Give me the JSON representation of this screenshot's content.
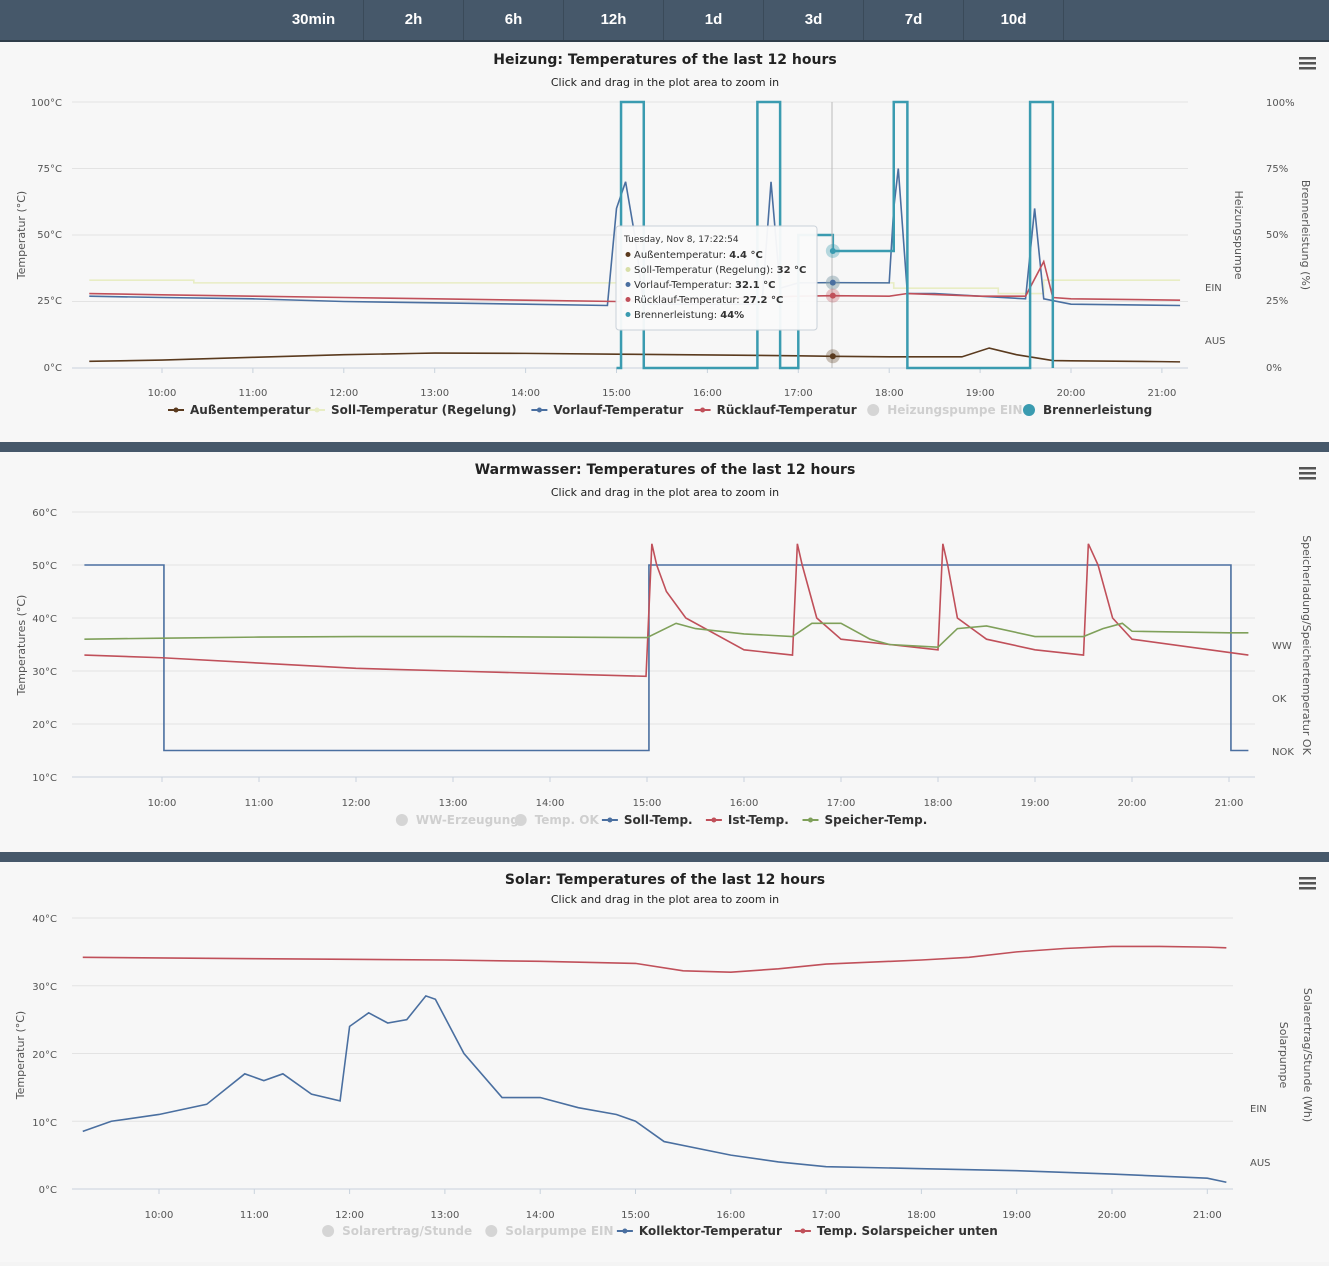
{
  "range_tabs": [
    "30min",
    "2h",
    "6h",
    "12h",
    "1d",
    "3d",
    "7d",
    "10d"
  ],
  "heizung": {
    "title": "Heizung: Temperatures of the last 12 hours",
    "subtitle": "Click and drag in the plot area to zoom in",
    "y_label": "Temperatur (°C)",
    "y2_label": "Heizungspumpe",
    "y3_label": "Brennerleistung (%)",
    "y_ticks": [
      "100°C",
      "75°C",
      "50°C",
      "25°C",
      "0°C"
    ],
    "y3_ticks": [
      "100%",
      "75%",
      "50%",
      "25%",
      "0%"
    ],
    "pump_states": [
      "EIN",
      "AUS"
    ],
    "x_ticks": [
      "10:00",
      "11:00",
      "12:00",
      "13:00",
      "14:00",
      "15:00",
      "16:00",
      "17:00",
      "18:00",
      "19:00",
      "20:00",
      "21:00"
    ],
    "legend": [
      {
        "name": "Außentemperatur",
        "color": "#5a3a1e",
        "enabled": true
      },
      {
        "name": "Soll-Temperatur (Regelung)",
        "color": "#e8edc4",
        "enabled": true
      },
      {
        "name": "Vorlauf-Temperatur",
        "color": "#4a6fa0",
        "enabled": true
      },
      {
        "name": "Rücklauf-Temperatur",
        "color": "#c0505a",
        "enabled": true
      },
      {
        "name": "Heizungspumpe EIN",
        "color": "#cccccc",
        "enabled": false
      },
      {
        "name": "Brennerleistung",
        "color": "#3a9bb0",
        "enabled": true
      }
    ],
    "tooltip": {
      "header": "Tuesday, Nov 8, 17:22:54",
      "rows": [
        {
          "label": "Außentemperatur: ",
          "value": "4.4 °C",
          "color": "#5a3a1e"
        },
        {
          "label": "Soll-Temperatur (Regelung): ",
          "value": "32 °C",
          "color": "#e8edc4"
        },
        {
          "label": "Vorlauf-Temperatur: ",
          "value": "32.1 °C",
          "color": "#4a6fa0"
        },
        {
          "label": "Rücklauf-Temperatur: ",
          "value": "27.2 °C",
          "color": "#c0505a"
        },
        {
          "label": "Brennerleistung: ",
          "value": "44%",
          "color": "#3a9bb0"
        }
      ]
    }
  },
  "warmwasser": {
    "title": "Warmwasser: Temperatures of the last 12 hours",
    "subtitle": "Click and drag in the plot area to zoom in",
    "y_label": "Temperatures (°C)",
    "y2_label": "Speicherladung/Speichertemperatur OK",
    "y_ticks": [
      "60°C",
      "50°C",
      "40°C",
      "30°C",
      "20°C",
      "10°C"
    ],
    "y2_ticks": [
      "WW",
      "OK",
      "NOK"
    ],
    "x_ticks": [
      "10:00",
      "11:00",
      "12:00",
      "13:00",
      "14:00",
      "15:00",
      "16:00",
      "17:00",
      "18:00",
      "19:00",
      "20:00",
      "21:00"
    ],
    "legend": [
      {
        "name": "WW-Erzeugung",
        "color": "#cccccc",
        "enabled": false
      },
      {
        "name": "Temp. OK",
        "color": "#cccccc",
        "enabled": false
      },
      {
        "name": "Soll-Temp.",
        "color": "#4a6fa0",
        "enabled": true
      },
      {
        "name": "Ist-Temp.",
        "color": "#c0505a",
        "enabled": true
      },
      {
        "name": "Speicher-Temp.",
        "color": "#7fa05a",
        "enabled": true
      }
    ]
  },
  "solar": {
    "title": "Solar: Temperatures of the last 12 hours",
    "subtitle": "Click and drag in the plot area to zoom in",
    "y_label": "Temperatur (°C)",
    "y2_label": "Solarpumpe",
    "y3_label": "Solarertrag/Stunde (Wh)",
    "y_ticks": [
      "40°C",
      "30°C",
      "20°C",
      "10°C",
      "0°C"
    ],
    "pump_states": [
      "EIN",
      "AUS"
    ],
    "x_ticks": [
      "10:00",
      "11:00",
      "12:00",
      "13:00",
      "14:00",
      "15:00",
      "16:00",
      "17:00",
      "18:00",
      "19:00",
      "20:00",
      "21:00"
    ],
    "legend": [
      {
        "name": "Solarertrag/Stunde",
        "color": "#cccccc",
        "enabled": false
      },
      {
        "name": "Solarpumpe EIN",
        "color": "#cccccc",
        "enabled": false
      },
      {
        "name": "Kollektor-Temperatur",
        "color": "#4a6fa0",
        "enabled": true
      },
      {
        "name": "Temp. Solarspeicher unten",
        "color": "#c0505a",
        "enabled": true
      }
    ]
  },
  "chart_data": [
    {
      "type": "line",
      "title": "Heizung: Temperatures of the last 12 hours",
      "x_unit": "hour",
      "ylim": [
        0,
        100
      ],
      "series": [
        {
          "name": "Außentemperatur",
          "x": [
            9.2,
            10,
            11,
            12,
            12.8,
            13,
            14,
            15,
            16,
            17,
            17.38,
            18,
            18.8,
            19.1,
            19.4,
            19.8,
            20,
            21,
            21.2
          ],
          "values": [
            2.5,
            3,
            4,
            5,
            5.5,
            5.6,
            5.5,
            5.2,
            4.9,
            4.6,
            4.4,
            4.2,
            4.2,
            7.5,
            5,
            2.8,
            2.7,
            2.4,
            2.3
          ]
        },
        {
          "name": "Soll-Temperatur (Regelung)",
          "x": [
            9.2,
            10.3,
            10.35,
            11,
            12,
            13,
            14,
            15,
            16,
            17,
            18,
            18.05,
            18.2,
            19,
            19.2,
            19.4,
            19.6,
            19.7,
            21.2
          ],
          "values": [
            33,
            33,
            32,
            32,
            32,
            32,
            32,
            32,
            32,
            32,
            32,
            30,
            30,
            30,
            28,
            28,
            28,
            33,
            33
          ]
        },
        {
          "name": "Vorlauf-Temperatur",
          "x": [
            9.2,
            10,
            11,
            12,
            13,
            14,
            14.9,
            15,
            15.1,
            15.2,
            15.3,
            16,
            16.6,
            16.7,
            16.8,
            17,
            17.38,
            18,
            18.05,
            18.1,
            18.2,
            18.5,
            19,
            19.5,
            19.6,
            19.7,
            20,
            21.2
          ],
          "values": [
            27,
            26.5,
            26,
            25,
            24.5,
            24,
            23.5,
            60,
            70,
            50,
            24,
            24,
            24,
            70,
            30,
            32,
            32.1,
            32,
            60,
            75,
            28,
            28,
            27,
            26,
            60,
            26,
            24,
            23.5
          ]
        },
        {
          "name": "Rücklauf-Temperatur",
          "x": [
            9.2,
            10,
            11,
            12,
            13,
            14,
            15,
            16,
            17,
            17.38,
            18,
            18.2,
            19,
            19.5,
            19.7,
            19.8,
            20,
            21.2
          ],
          "values": [
            28,
            27.5,
            27,
            26.5,
            26,
            25.5,
            25,
            26,
            27,
            27.2,
            27,
            28,
            27,
            27,
            40,
            26.5,
            26,
            25.5
          ]
        },
        {
          "name": "Brennerleistung",
          "x": [
            15,
            15.05,
            15.3,
            16.5,
            16.55,
            16.8,
            17.0,
            17.38,
            18,
            18.05,
            18.2,
            19.5,
            19.55,
            19.8
          ],
          "values": [
            0,
            100,
            0,
            0,
            100,
            0,
            50,
            44,
            44,
            100,
            0,
            0,
            100,
            0
          ]
        }
      ]
    },
    {
      "type": "line",
      "title": "Warmwasser: Temperatures of the last 12 hours",
      "x_unit": "hour",
      "ylim": [
        10,
        60
      ],
      "series": [
        {
          "name": "Soll-Temp.",
          "x": [
            9.2,
            10,
            10.02,
            15.0,
            15.02,
            21.0,
            21.02,
            21.2
          ],
          "values": [
            50,
            50,
            15,
            15,
            50,
            50,
            15,
            15
          ]
        },
        {
          "name": "Ist-Temp.",
          "x": [
            9.2,
            10,
            11,
            12,
            13,
            14,
            14.99,
            15.05,
            15.1,
            15.2,
            15.4,
            16,
            16.5,
            16.55,
            16.6,
            16.75,
            17,
            17.5,
            18.0,
            18.05,
            18.1,
            18.2,
            18.5,
            19,
            19.5,
            19.55,
            19.65,
            19.8,
            20,
            21,
            21.2
          ],
          "values": [
            33,
            32.5,
            31.5,
            30.5,
            30,
            29.5,
            29,
            54,
            50,
            45,
            40,
            34,
            33,
            54,
            50,
            40,
            36,
            35,
            34,
            54,
            50,
            40,
            36,
            34,
            33,
            54,
            50,
            40,
            36,
            33.5,
            33
          ]
        },
        {
          "name": "Speicher-Temp.",
          "x": [
            9.2,
            10,
            11,
            12,
            13,
            14,
            15,
            15.3,
            15.5,
            16,
            16.5,
            16.7,
            17,
            17.3,
            17.5,
            18,
            18.2,
            18.5,
            19,
            19.5,
            19.7,
            19.9,
            20,
            21,
            21.2
          ],
          "values": [
            36,
            36.2,
            36.4,
            36.5,
            36.5,
            36.4,
            36.3,
            39,
            38,
            37,
            36.5,
            39,
            39,
            36,
            35,
            34.5,
            38,
            38.5,
            36.5,
            36.5,
            38,
            39,
            37.5,
            37.2,
            37.2
          ]
        }
      ]
    },
    {
      "type": "line",
      "title": "Solar: Temperatures of the last 12 hours",
      "x_unit": "hour",
      "ylim": [
        0,
        40
      ],
      "series": [
        {
          "name": "Kollektor-Temperatur",
          "x": [
            9.2,
            9.5,
            10,
            10.5,
            10.9,
            11.1,
            11.3,
            11.6,
            11.9,
            12.0,
            12.2,
            12.4,
            12.6,
            12.8,
            12.9,
            13.2,
            13.6,
            14,
            14.4,
            14.8,
            15.0,
            15.3,
            16,
            16.5,
            17,
            18,
            19,
            20,
            21,
            21.2
          ],
          "values": [
            8.5,
            10,
            11,
            12.5,
            17,
            16,
            17,
            14,
            13,
            24,
            26,
            24.5,
            25,
            28.5,
            28,
            20,
            13.5,
            13.5,
            12,
            11,
            10,
            7,
            5,
            4,
            3.3,
            3,
            2.7,
            2.2,
            1.6,
            1
          ]
        },
        {
          "name": "Temp. Solarspeicher unten",
          "x": [
            9.2,
            10,
            11,
            12,
            13,
            14,
            15,
            15.5,
            16,
            16.5,
            17,
            18,
            18.5,
            19,
            19.5,
            20,
            20.5,
            21,
            21.2
          ],
          "values": [
            34.2,
            34.1,
            34,
            33.9,
            33.8,
            33.6,
            33.3,
            32.2,
            32,
            32.5,
            33.2,
            33.8,
            34.2,
            35,
            35.5,
            35.8,
            35.8,
            35.7,
            35.6
          ]
        }
      ]
    }
  ]
}
